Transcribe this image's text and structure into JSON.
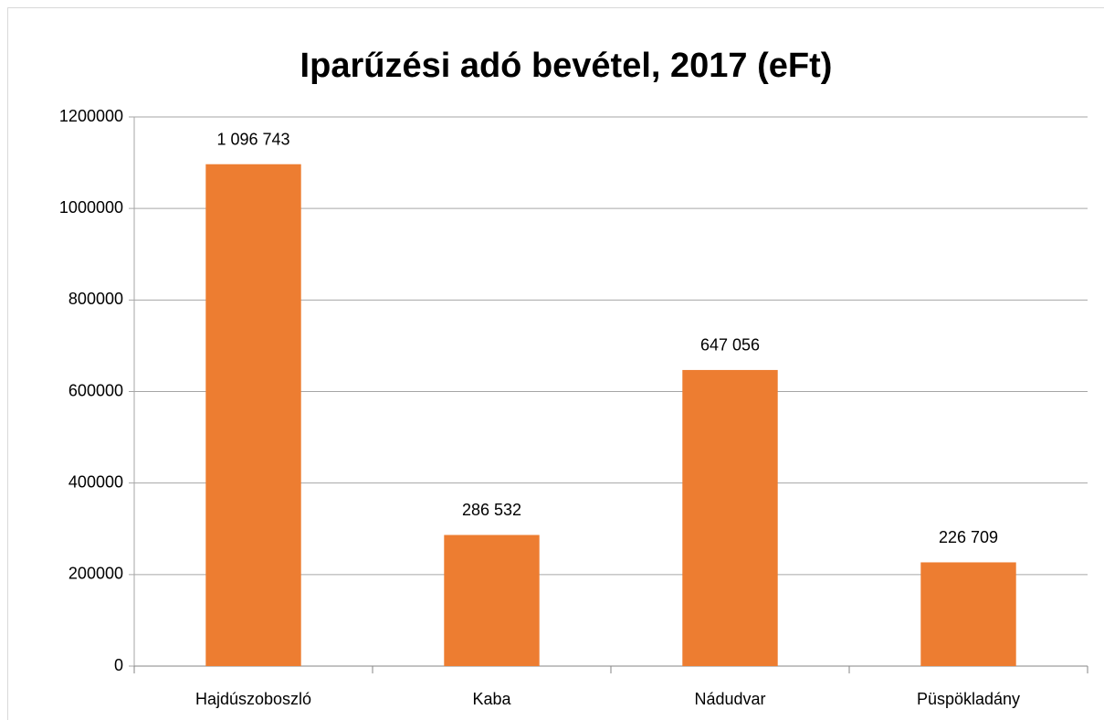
{
  "chart_data": {
    "type": "bar",
    "title": "Iparűzési adó bevétel, 2017 (eFt)",
    "categories": [
      "Hajdúszoboszló",
      "Kaba",
      "Nádudvar",
      "Püspökladány"
    ],
    "values": [
      1096743,
      286532,
      647056,
      226709
    ],
    "value_labels": [
      "1 096 743",
      "286 532",
      "647 056",
      "226 709"
    ],
    "color": "#ed7d31",
    "ylim": [
      0,
      1200000
    ],
    "yticks": [
      0,
      200000,
      400000,
      600000,
      800000,
      1000000,
      1200000
    ],
    "grid": true
  }
}
